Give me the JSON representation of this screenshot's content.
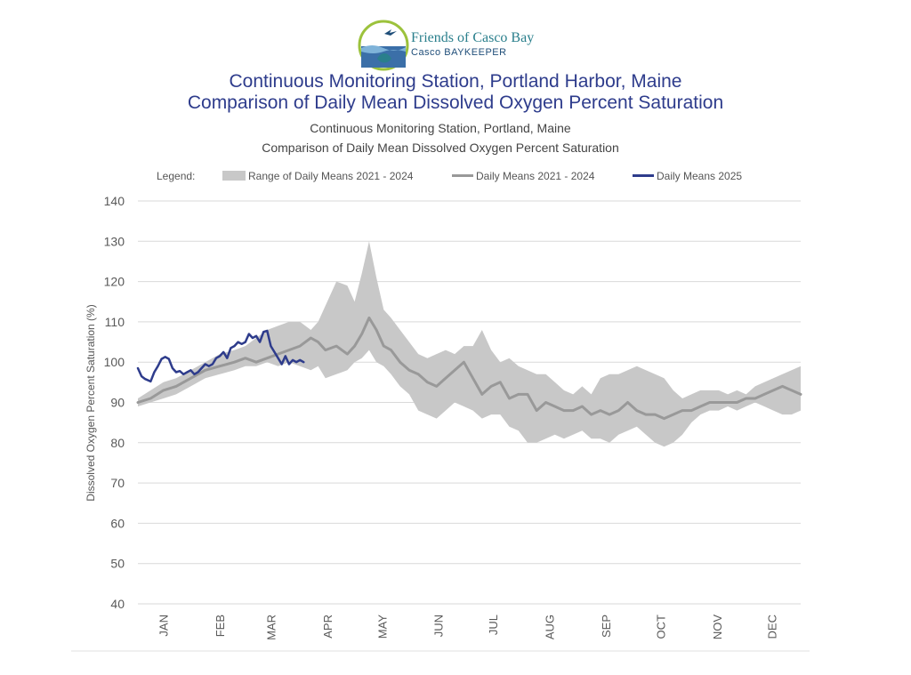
{
  "header": {
    "logo_name": "Friends of Casco Bay",
    "logo_sub": "Casco BAYKEEPER",
    "title_line1": "Continuous Monitoring Station, Portland Harbor, Maine",
    "title_line2": "Comparison of Daily Mean Dissolved Oxygen Percent Saturation",
    "subtitle_line1": "Continuous Monitoring Station, Portland, Maine",
    "subtitle_line2": "Comparison of Daily Mean Dissolved Oxygen Percent Saturation"
  },
  "colors": {
    "range_fill": "#c8c8c8",
    "mean_line": "#999999",
    "line_2025": "#2e3c8c",
    "grid": "#d9d9d9"
  },
  "chart_data": {
    "type": "area",
    "legend_title": "Legend:",
    "legend_placement": "top",
    "ylabel": "Dissolved Oxygen Percent Saturation (%)",
    "xlabel": "",
    "ylim": [
      40,
      140
    ],
    "yticks": [
      40,
      50,
      60,
      70,
      80,
      90,
      100,
      110,
      120,
      130,
      140
    ],
    "grid": true,
    "x_unit": "day of year",
    "xlim": [
      1,
      365
    ],
    "month_labels": [
      "JAN",
      "FEB",
      "MAR",
      "APR",
      "MAY",
      "JUN",
      "JUL",
      "AUG",
      "SEP",
      "OCT",
      "NOV",
      "DEC"
    ],
    "month_label_days": [
      15,
      46,
      74,
      105,
      135,
      166,
      196,
      227,
      258,
      288,
      319,
      349
    ],
    "series": [
      {
        "name": "Range of Daily Means 2021 - 2024",
        "kind": "band",
        "x": [
          1,
          8,
          15,
          22,
          30,
          38,
          46,
          54,
          60,
          66,
          72,
          78,
          84,
          90,
          96,
          100,
          104,
          110,
          116,
          120,
          124,
          128,
          132,
          136,
          140,
          145,
          150,
          155,
          160,
          165,
          170,
          175,
          180,
          185,
          190,
          195,
          200,
          205,
          210,
          215,
          220,
          225,
          230,
          235,
          240,
          245,
          250,
          255,
          260,
          265,
          270,
          275,
          280,
          285,
          290,
          295,
          300,
          305,
          310,
          315,
          320,
          325,
          330,
          335,
          340,
          345,
          350,
          355,
          360,
          365
        ],
        "low": [
          89,
          90,
          91,
          92,
          94,
          96,
          97,
          98,
          99,
          99,
          100,
          99,
          100,
          99,
          98,
          99,
          96,
          97,
          98,
          100,
          101,
          103,
          100,
          99,
          97,
          94,
          92,
          88,
          87,
          86,
          88,
          90,
          89,
          88,
          86,
          87,
          87,
          84,
          83,
          80,
          80,
          81,
          82,
          81,
          82,
          83,
          81,
          81,
          80,
          82,
          83,
          84,
          82,
          80,
          79,
          80,
          82,
          85,
          87,
          88,
          88,
          89,
          88,
          89,
          90,
          89,
          88,
          87,
          87,
          88
        ],
        "high": [
          91,
          93,
          95,
          96,
          98,
          100,
          102,
          103,
          104,
          106,
          108,
          109,
          110,
          110,
          108,
          110,
          114,
          120,
          119,
          115,
          122,
          130,
          121,
          113,
          111,
          108,
          105,
          102,
          101,
          102,
          103,
          102,
          104,
          104,
          108,
          103,
          100,
          101,
          99,
          98,
          97,
          97,
          95,
          93,
          92,
          94,
          92,
          96,
          97,
          97,
          98,
          99,
          98,
          97,
          96,
          93,
          91,
          92,
          93,
          93,
          93,
          92,
          93,
          92,
          94,
          95,
          96,
          97,
          98,
          99
        ]
      },
      {
        "name": "Daily Means 2021 - 2024",
        "kind": "line",
        "x": [
          1,
          8,
          15,
          22,
          30,
          38,
          46,
          54,
          60,
          66,
          72,
          78,
          84,
          90,
          96,
          100,
          104,
          110,
          116,
          120,
          124,
          128,
          132,
          136,
          140,
          145,
          150,
          155,
          160,
          165,
          170,
          175,
          180,
          185,
          190,
          195,
          200,
          205,
          210,
          215,
          220,
          225,
          230,
          235,
          240,
          245,
          250,
          255,
          260,
          265,
          270,
          275,
          280,
          285,
          290,
          295,
          300,
          305,
          310,
          315,
          320,
          325,
          330,
          335,
          340,
          345,
          350,
          355,
          360,
          365
        ],
        "values": [
          90,
          91,
          93,
          94,
          96,
          98,
          99,
          100,
          101,
          100,
          101,
          102,
          103,
          104,
          106,
          105,
          103,
          104,
          102,
          104,
          107,
          111,
          108,
          104,
          103,
          100,
          98,
          97,
          95,
          94,
          96,
          98,
          100,
          96,
          92,
          94,
          95,
          91,
          92,
          92,
          88,
          90,
          89,
          88,
          88,
          89,
          87,
          88,
          87,
          88,
          90,
          88,
          87,
          87,
          86,
          87,
          88,
          88,
          89,
          90,
          90,
          90,
          90,
          91,
          91,
          92,
          93,
          94,
          93,
          92
        ]
      },
      {
        "name": "Daily Means 2025",
        "kind": "line",
        "x": [
          1,
          3,
          5,
          8,
          10,
          12,
          14,
          16,
          18,
          20,
          22,
          24,
          26,
          28,
          30,
          32,
          34,
          36,
          38,
          40,
          42,
          44,
          46,
          48,
          50,
          52,
          54,
          56,
          58,
          60,
          62,
          64,
          66,
          68,
          70,
          72,
          74,
          76,
          78,
          80,
          82,
          84,
          86,
          88,
          90,
          92
        ],
        "values": [
          98.5,
          96.5,
          95.8,
          95.2,
          97.5,
          99,
          100.8,
          101.3,
          100.8,
          98.5,
          97.5,
          97.8,
          97,
          97.5,
          98,
          97,
          97.5,
          98.5,
          99.5,
          99,
          99.5,
          101,
          101.5,
          102.5,
          101,
          103.5,
          104,
          105,
          104.5,
          105,
          107,
          106,
          106.5,
          105,
          107.5,
          107.8,
          104,
          102.5,
          101,
          99.5,
          101.5,
          99.5,
          100.5,
          100,
          100.5,
          100
        ]
      }
    ]
  }
}
